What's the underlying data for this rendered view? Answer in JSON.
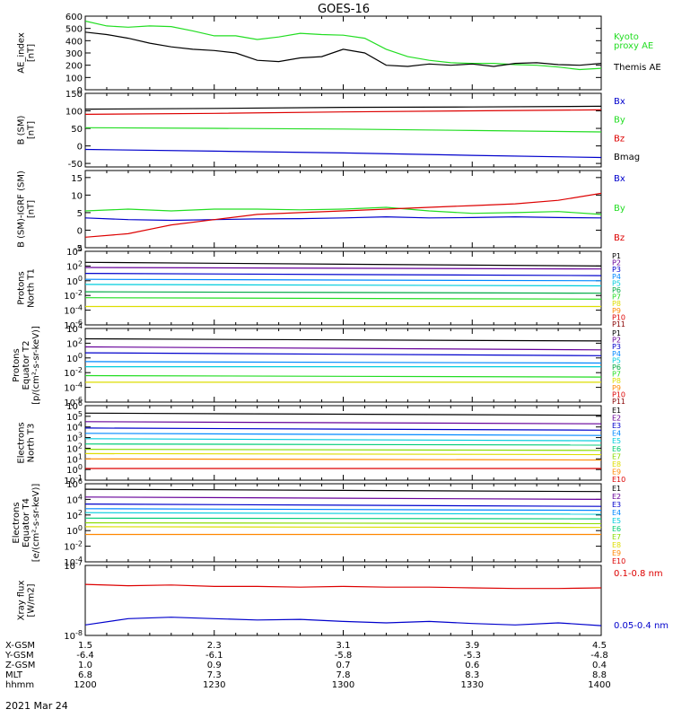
{
  "title": "GOES-16",
  "date_label": "2021 Mar 24",
  "colors": {
    "black": "#000000",
    "green": "#22dd22",
    "red": "#dd0000",
    "blue": "#0000cc",
    "P": [
      "#000000",
      "#660099",
      "#0000cc",
      "#0088ff",
      "#00ccdd",
      "#00aa44",
      "#22dd22",
      "#dddd00",
      "#ff8800",
      "#dd0000",
      "#880000"
    ],
    "E": [
      "#000000",
      "#660099",
      "#0000cc",
      "#0088ff",
      "#00ccdd",
      "#00cc77",
      "#88dd00",
      "#dddd00",
      "#ff8800",
      "#dd0000"
    ]
  },
  "time_axis": {
    "rows": [
      {
        "name": "X-GSM",
        "values": [
          "1.5",
          "2.3",
          "3.1",
          "3.9",
          "4.5"
        ]
      },
      {
        "name": "Y-GSM",
        "values": [
          "-6.4",
          "-6.1",
          "-5.8",
          "-5.3",
          "-4.8"
        ]
      },
      {
        "name": "Z-GSM",
        "values": [
          "1.0",
          "0.9",
          "0.7",
          "0.6",
          "0.4"
        ]
      },
      {
        "name": "MLT",
        "values": [
          "6.8",
          "7.3",
          "7.8",
          "8.3",
          "8.8"
        ]
      },
      {
        "name": "hhmm",
        "values": [
          "1200",
          "1230",
          "1300",
          "1330",
          "1400"
        ]
      }
    ]
  },
  "chart_data": [
    {
      "type": "line",
      "id": "ae",
      "ylabel": [
        "AE_index",
        "[nT]"
      ],
      "ylim": [
        0,
        600
      ],
      "yticks": [
        "600",
        "500",
        "400",
        "300",
        "200",
        "100",
        "0"
      ],
      "x": [
        1200,
        1205,
        1210,
        1215,
        1220,
        1225,
        1230,
        1235,
        1240,
        1245,
        1250,
        1255,
        1300,
        1305,
        1310,
        1315,
        1320,
        1325,
        1330,
        1335,
        1340,
        1345,
        1350,
        1355,
        1400
      ],
      "series": [
        {
          "name": "Kyoto proxy AE",
          "color": "green",
          "values": [
            560,
            520,
            510,
            520,
            515,
            480,
            440,
            440,
            410,
            430,
            460,
            450,
            445,
            420,
            330,
            270,
            240,
            220,
            215,
            215,
            205,
            200,
            185,
            165,
            175
          ]
        },
        {
          "name": "Themis AE",
          "color": "black",
          "values": [
            470,
            450,
            420,
            380,
            350,
            330,
            320,
            300,
            240,
            230,
            260,
            270,
            330,
            300,
            200,
            190,
            210,
            200,
            210,
            190,
            215,
            220,
            205,
            200,
            215
          ]
        }
      ],
      "legend": [
        {
          "text": "Kyoto",
          "color": "green"
        },
        {
          "text": "proxy AE",
          "color": "green"
        },
        {
          "text": "Themis AE",
          "color": "black"
        }
      ]
    },
    {
      "type": "line",
      "id": "bsm",
      "ylabel": [
        "B (SM)",
        "[nT]"
      ],
      "ylim": [
        -60,
        150
      ],
      "yticks": [
        "150",
        "100",
        "50",
        "0",
        "-50"
      ],
      "x": [
        1200,
        1230,
        1300,
        1330,
        1400
      ],
      "series": [
        {
          "name": "Bx",
          "color": "blue",
          "values": [
            -10,
            -15,
            -20,
            -27,
            -33
          ]
        },
        {
          "name": "By",
          "color": "green",
          "values": [
            52,
            50,
            48,
            44,
            40
          ]
        },
        {
          "name": "Bz",
          "color": "red",
          "values": [
            90,
            93,
            97,
            100,
            103
          ]
        },
        {
          "name": "Bmag",
          "color": "black",
          "values": [
            105,
            107,
            110,
            111,
            113
          ]
        }
      ],
      "legend": [
        {
          "text": "Bx",
          "color": "blue"
        },
        {
          "text": "By",
          "color": "green"
        },
        {
          "text": "Bz",
          "color": "red"
        },
        {
          "text": "Bmag",
          "color": "black"
        }
      ]
    },
    {
      "type": "line",
      "id": "bdiff",
      "ylabel": [
        "B (SM)-IGRF (SM)",
        "[nT]"
      ],
      "ylim": [
        -5,
        17
      ],
      "yticks": [
        "15",
        "10",
        "5",
        "0",
        "-5"
      ],
      "x": [
        1200,
        1210,
        1220,
        1230,
        1240,
        1250,
        1300,
        1310,
        1320,
        1330,
        1340,
        1350,
        1400
      ],
      "series": [
        {
          "name": "Bx",
          "color": "blue",
          "values": [
            3.5,
            3,
            2.8,
            3,
            3.2,
            3.3,
            3.5,
            3.8,
            3.5,
            3.6,
            3.8,
            3.6,
            3.5
          ]
        },
        {
          "name": "By",
          "color": "green",
          "values": [
            5.5,
            6,
            5.5,
            6,
            6,
            5.8,
            6,
            6.5,
            5.5,
            4.8,
            5,
            5.3,
            4.5
          ]
        },
        {
          "name": "Bz",
          "color": "red",
          "values": [
            -2,
            -1,
            1.5,
            3,
            4.5,
            5,
            5.5,
            6,
            6.5,
            7,
            7.5,
            8.5,
            10.5
          ]
        }
      ],
      "legend": [
        {
          "text": "Bx",
          "color": "blue"
        },
        {
          "text": "By",
          "color": "green"
        },
        {
          "text": "Bz",
          "color": "red"
        }
      ]
    },
    {
      "type": "line",
      "id": "pn",
      "ylabel": [
        "Protons",
        "North T1"
      ],
      "ylog": true,
      "ylim": [
        -6,
        4
      ],
      "yticks": [
        "10^4",
        "10^2",
        "10^0",
        "10^-2",
        "10^-4",
        "10^-6"
      ],
      "x": [
        1200,
        1400
      ],
      "series": [
        {
          "name": "P1",
          "color": "P0",
          "values": [
            2.5,
            2.0
          ]
        },
        {
          "name": "P2",
          "color": "P1",
          "values": [
            1.8,
            1.6
          ]
        },
        {
          "name": "P3",
          "color": "P2",
          "values": [
            1.0,
            0.7
          ]
        },
        {
          "name": "P4",
          "color": "P3",
          "values": [
            0.2,
            0.0
          ]
        },
        {
          "name": "P5",
          "color": "P4",
          "values": [
            -0.5,
            -0.7
          ]
        },
        {
          "name": "P6",
          "color": "P5",
          "values": [
            -1.5,
            -1.7
          ]
        },
        {
          "name": "P7",
          "color": "P6",
          "values": [
            -2.3,
            -2.5
          ]
        },
        {
          "name": "P8",
          "color": "P7",
          "values": [
            -3.5,
            -3.5
          ]
        }
      ],
      "legend": [
        "P1",
        "P2",
        "P3",
        "P4",
        "P5",
        "P6",
        "P7",
        "P8",
        "P9",
        "P10",
        "P11"
      ]
    },
    {
      "type": "line",
      "id": "pe",
      "ylabel": [
        "Protons",
        "Equator T2",
        "[p/(cm²-s-sr-keV)]"
      ],
      "ylog": true,
      "ylim": [
        -6,
        4
      ],
      "yticks": [
        "10^4",
        "10^2",
        "10^0",
        "10^-2",
        "10^-4",
        "10^-6"
      ],
      "x": [
        1200,
        1400
      ],
      "series": [
        {
          "name": "P1",
          "color": "P0",
          "values": [
            2.6,
            2.3
          ]
        },
        {
          "name": "P2",
          "color": "P1",
          "values": [
            1.5,
            1.1
          ]
        },
        {
          "name": "P3",
          "color": "P2",
          "values": [
            0.7,
            0.3
          ]
        },
        {
          "name": "P4",
          "color": "P3",
          "values": [
            -0.5,
            -0.7
          ]
        },
        {
          "name": "P5",
          "color": "P4",
          "values": [
            -1.2,
            -1.2
          ]
        },
        {
          "name": "P7",
          "color": "P6",
          "values": [
            -2.4,
            -2.6
          ]
        },
        {
          "name": "P8",
          "color": "P7",
          "values": [
            -3.3,
            -3.3
          ]
        }
      ],
      "legend": [
        "P1",
        "P2",
        "P3",
        "P4",
        "P5",
        "P6",
        "P7",
        "P8",
        "P9",
        "P10",
        "P11"
      ]
    },
    {
      "type": "line",
      "id": "en",
      "ylabel": [
        "Electrons",
        "North T3"
      ],
      "ylog": true,
      "ylim": [
        -1,
        6
      ],
      "yticks": [
        "10^6",
        "10^5",
        "10^4",
        "10^3",
        "10^2",
        "10^1",
        "10^0",
        "10^-1"
      ],
      "x": [
        1200,
        1400
      ],
      "series": [
        {
          "name": "E1",
          "color": "E0",
          "values": [
            5.3,
            5.1
          ]
        },
        {
          "name": "E2",
          "color": "E1",
          "values": [
            4.5,
            4.3
          ]
        },
        {
          "name": "E3",
          "color": "E2",
          "values": [
            3.9,
            3.7
          ]
        },
        {
          "name": "E4",
          "color": "E3",
          "values": [
            3.4,
            3.2
          ]
        },
        {
          "name": "E5",
          "color": "E4",
          "values": [
            2.9,
            2.7
          ]
        },
        {
          "name": "E6",
          "color": "E5",
          "values": [
            2.4,
            2.3
          ]
        },
        {
          "name": "E7",
          "color": "E6",
          "values": [
            1.9,
            1.8
          ]
        },
        {
          "name": "E8",
          "color": "E7",
          "values": [
            1.5,
            1.4
          ]
        },
        {
          "name": "E9",
          "color": "E8",
          "values": [
            1.0,
            0.9
          ]
        },
        {
          "name": "E10",
          "color": "E9",
          "values": [
            0.1,
            0.1
          ]
        }
      ],
      "legend": [
        "E1",
        "E2",
        "E3",
        "E4",
        "E5",
        "E6",
        "E7",
        "E8",
        "E9",
        "E10"
      ]
    },
    {
      "type": "line",
      "id": "ee",
      "ylabel": [
        "Electrons",
        "Equator T4",
        "[e/(cm²-s-sr-keV)]"
      ],
      "ylog": true,
      "ylim": [
        -4,
        6
      ],
      "yticks": [
        "10^6",
        "10^4",
        "10^2",
        "10^0",
        "10^-2",
        "10^-4"
      ],
      "x": [
        1200,
        1400
      ],
      "series": [
        {
          "name": "E1",
          "color": "E0",
          "values": [
            5.3,
            5.0
          ]
        },
        {
          "name": "E2",
          "color": "E1",
          "values": [
            4.3,
            4.0
          ]
        },
        {
          "name": "E3",
          "color": "E2",
          "values": [
            3.4,
            3.1
          ]
        },
        {
          "name": "E4",
          "color": "E3",
          "values": [
            2.8,
            2.6
          ]
        },
        {
          "name": "E5",
          "color": "E4",
          "values": [
            2.3,
            2.1
          ]
        },
        {
          "name": "E6",
          "color": "E5",
          "values": [
            1.6,
            1.5
          ]
        },
        {
          "name": "E7",
          "color": "E6",
          "values": [
            1.0,
            0.9
          ]
        },
        {
          "name": "E8",
          "color": "E7",
          "values": [
            0.5,
            0.4
          ]
        },
        {
          "name": "E9",
          "color": "E8",
          "values": [
            -0.5,
            -0.5
          ]
        }
      ],
      "legend": [
        "E1",
        "E2",
        "E3",
        "E4",
        "E5",
        "E6",
        "E7",
        "E8",
        "E9",
        "E10"
      ]
    },
    {
      "type": "line",
      "id": "xray",
      "ylabel": [
        "Xray flux",
        "[W/m2]"
      ],
      "ylog": true,
      "ylim": [
        -8,
        -7
      ],
      "yticks": [
        "10^-7",
        "10^-8"
      ],
      "x": [
        1200,
        1210,
        1220,
        1230,
        1240,
        1250,
        1300,
        1310,
        1320,
        1330,
        1340,
        1350,
        1400
      ],
      "series": [
        {
          "name": "0.1-0.8 nm",
          "color": "red",
          "values": [
            -7.27,
            -7.29,
            -7.28,
            -7.3,
            -7.3,
            -7.31,
            -7.3,
            -7.31,
            -7.31,
            -7.32,
            -7.33,
            -7.33,
            -7.32
          ]
        },
        {
          "name": "0.05-0.4 nm",
          "color": "blue",
          "values": [
            -7.85,
            -7.76,
            -7.74,
            -7.76,
            -7.78,
            -7.77,
            -7.8,
            -7.82,
            -7.8,
            -7.83,
            -7.85,
            -7.82,
            -7.86
          ]
        }
      ],
      "legend": [
        {
          "text": "0.1-0.8 nm",
          "color": "red"
        },
        {
          "text": "0.05-0.4 nm",
          "color": "blue"
        }
      ]
    }
  ]
}
